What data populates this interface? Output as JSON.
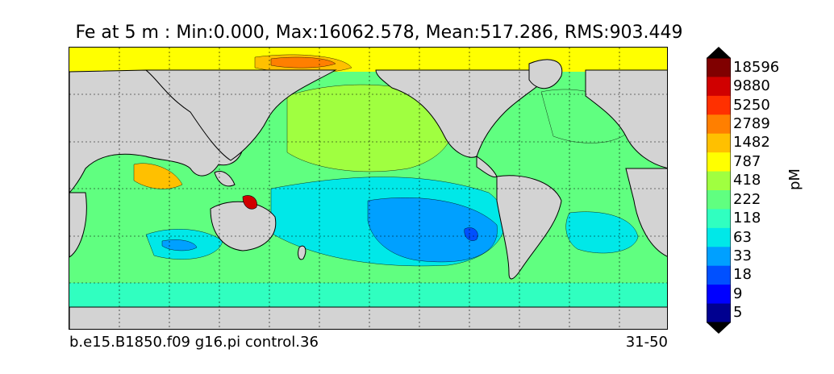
{
  "title": "Fe at 5 m : Min:0.000, Max:16062.578, Mean:517.286, RMS:903.449",
  "caption_left": "b.e15.B1850.f09 g16.pi control.36",
  "caption_right": "31-50",
  "colorbar": {
    "unit_label": "pM",
    "ticks": [
      "18596",
      "9880",
      "5250",
      "2789",
      "1482",
      "787",
      "418",
      "222",
      "118",
      "63",
      "33",
      "18",
      "9",
      "5"
    ],
    "colors": [
      "#800000",
      "#d00000",
      "#ff3000",
      "#ff7f00",
      "#ffc000",
      "#ffff00",
      "#a0ff40",
      "#60ff80",
      "#30ffc0",
      "#00e8e8",
      "#00a0ff",
      "#0050ff",
      "#0000ff",
      "#000090"
    ],
    "over_color": "#000000",
    "under_color": "#000000"
  },
  "map": {
    "land_color": "#d3d3d3",
    "gridlines": "dotted"
  }
}
